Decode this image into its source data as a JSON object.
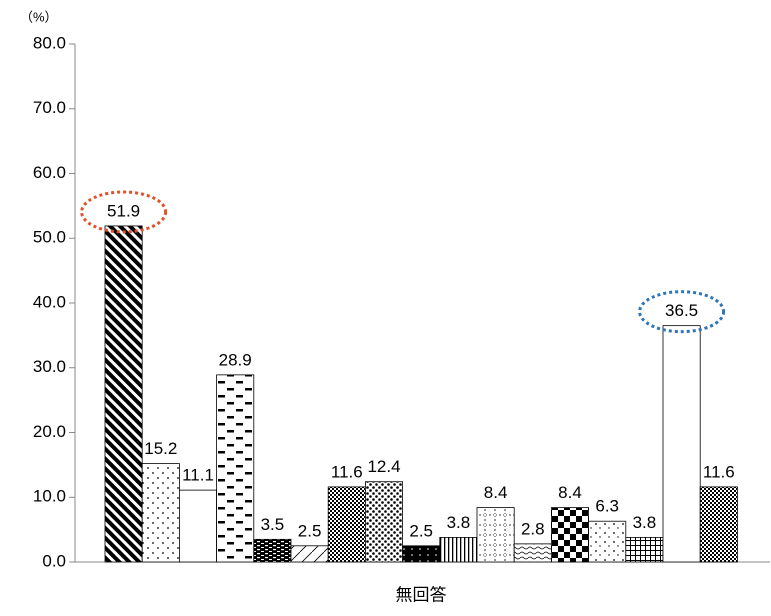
{
  "chart_data": {
    "type": "bar",
    "y_unit": "（%）",
    "x_label": "無回答",
    "values": [
      51.9,
      15.2,
      11.1,
      28.9,
      3.5,
      2.5,
      11.6,
      12.4,
      2.5,
      3.8,
      8.4,
      2.8,
      8.4,
      6.3,
      3.8,
      36.5,
      11.6
    ],
    "patterns": [
      "diag",
      "dots",
      "plain",
      "dashes",
      "bricks",
      "slash",
      "checkfine",
      "dotsdense",
      "blackdots",
      "vert",
      "dotgrid",
      "wave",
      "checker",
      "sparse",
      "grid",
      "plain",
      "checkfine"
    ],
    "highlights": [
      {
        "index": 0,
        "color": "#e0522a"
      },
      {
        "index": 15,
        "color": "#2e75b6"
      }
    ],
    "ylim": [
      0,
      80
    ],
    "yticks": [
      {
        "value": 0,
        "label": "0.0"
      },
      {
        "value": 10,
        "label": "10.0"
      },
      {
        "value": 20,
        "label": "20.0"
      },
      {
        "value": 30,
        "label": "30.0"
      },
      {
        "value": 40,
        "label": "40.0"
      },
      {
        "value": 50,
        "label": "50.0"
      },
      {
        "value": 60,
        "label": "60.0"
      },
      {
        "value": 70,
        "label": "70.0"
      },
      {
        "value": 80,
        "label": "80.0"
      }
    ]
  }
}
